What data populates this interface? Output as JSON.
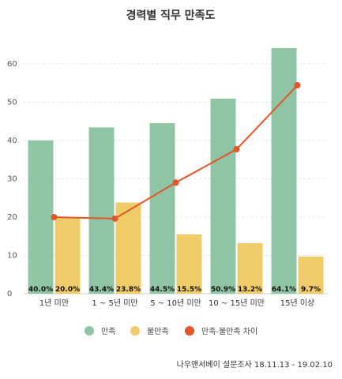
{
  "chart_data": {
    "type": "bar",
    "title": "경력별 직무 만족도",
    "categories": [
      "1년 미만",
      "1 ~ 5년 미만",
      "5 ~ 10년 미만",
      "10 ~ 15년 미만",
      "15년 이상"
    ],
    "series": [
      {
        "name": "만족",
        "type": "bar",
        "color": "#8fc5a5",
        "values": [
          40.0,
          43.4,
          44.5,
          50.9,
          64.1
        ],
        "labels": [
          "40.0%",
          "43.4%",
          "44.5%",
          "50.9%",
          "64.1%"
        ]
      },
      {
        "name": "불만족",
        "type": "bar",
        "color": "#f0cb68",
        "values": [
          20.0,
          23.8,
          15.5,
          13.2,
          9.7
        ],
        "labels": [
          "20.0%",
          "23.8%",
          "15.5%",
          "13.2%",
          "9.7%"
        ]
      },
      {
        "name": "만족-불만족 차이",
        "type": "line",
        "color": "#e0572b",
        "values": [
          20.0,
          19.6,
          29.0,
          37.7,
          54.4
        ]
      }
    ],
    "yticks": [
      0,
      10,
      20,
      30,
      40,
      50,
      60
    ],
    "ylim": [
      0,
      68
    ],
    "grid": true,
    "legend": "bottom",
    "source": "나우앤서베이 설문조사 18.11.13 - 19.02.10"
  }
}
